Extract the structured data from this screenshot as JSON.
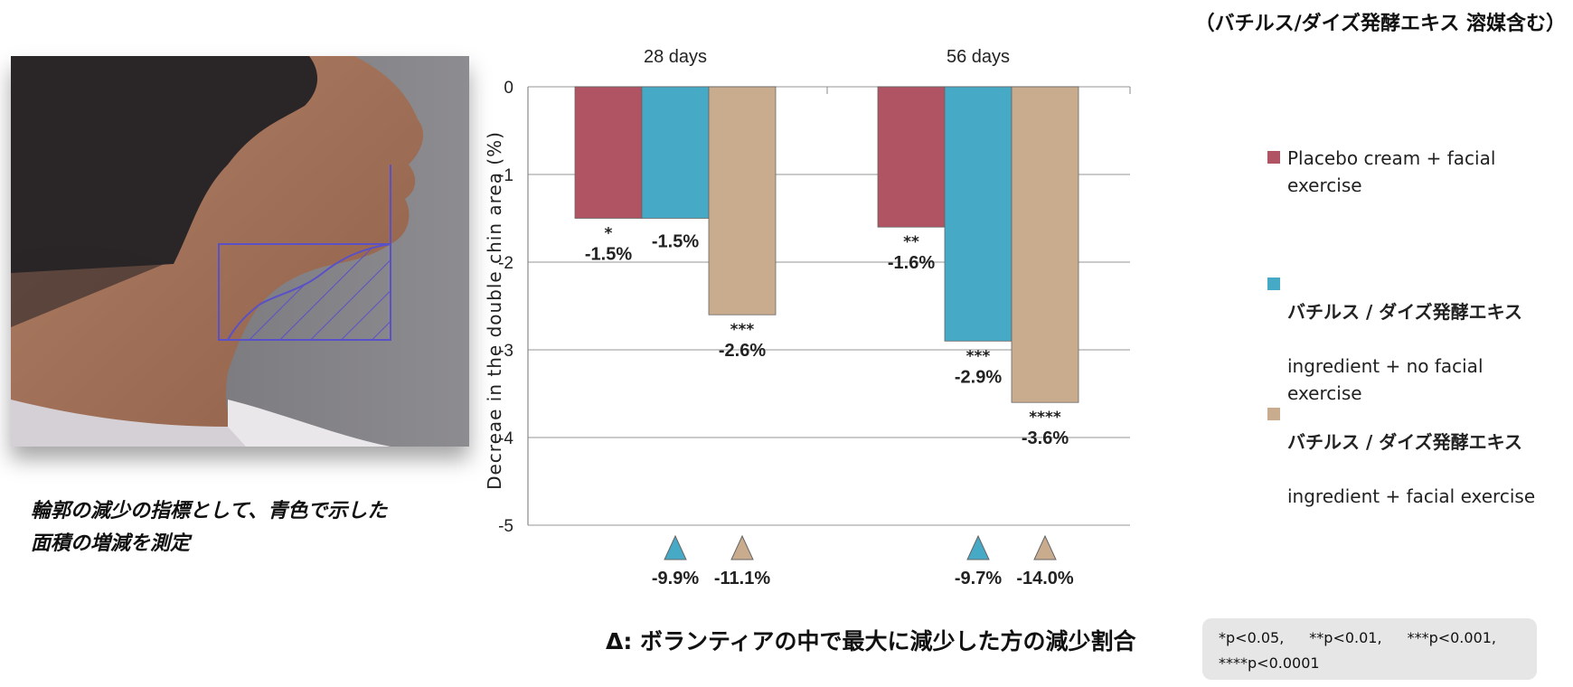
{
  "top_title": "（バチルス/ダイズ発酵エキス 溶媒含む）",
  "photo": {
    "description": "side profile of neck with hatched double-chin measurement area"
  },
  "caption_lines": [
    "輪郭の減少の指標として、青色で示した",
    "面積の増減を測定"
  ],
  "colors": {
    "placebo": "#b05463",
    "no_exercise": "#46a9c6",
    "with_exercise": "#c9ab8e",
    "grid": "#aaaaaa",
    "outline": "#6b5cc7"
  },
  "chart_data": {
    "type": "bar",
    "title": "",
    "ylabel": "Decreae in the double chin area (%)",
    "xlabel": "",
    "ylim": [
      -5,
      0
    ],
    "yticks": [
      0,
      -1,
      -2,
      -3,
      -4,
      -5
    ],
    "grid": true,
    "categories": [
      "28 days",
      "56 days"
    ],
    "series": [
      {
        "name": "Placebo cream + facial exercise",
        "color": "#b05463",
        "values": [
          -1.5,
          -1.6
        ],
        "labels": [
          "-1.5%",
          "-1.6%"
        ],
        "significance": [
          "*",
          "**"
        ]
      },
      {
        "name": "バチルス / ダイズ発酵エキス ingredient + no facial exercise",
        "color": "#46a9c6",
        "values": [
          -1.5,
          -2.9
        ],
        "labels": [
          "-1.5%",
          "-2.9%"
        ],
        "significance": [
          "",
          "***"
        ]
      },
      {
        "name": "バチルス / ダイズ発酵エキス ingredient + facial exercise",
        "color": "#c9ab8e",
        "values": [
          -2.6,
          -3.6
        ],
        "labels": [
          "-2.6%",
          "-3.6%"
        ],
        "significance": [
          "***",
          "****"
        ]
      }
    ],
    "max_reduction": [
      {
        "category": "28 days",
        "series": 1,
        "label": "-9.9%"
      },
      {
        "category": "28 days",
        "series": 2,
        "label": "-11.1%"
      },
      {
        "category": "56 days",
        "series": 1,
        "label": "-9.7%"
      },
      {
        "category": "56 days",
        "series": 2,
        "label": "-14.0%"
      }
    ]
  },
  "legend": {
    "items": [
      {
        "prefix": "",
        "text": "Placebo cream + facial\nexercise"
      },
      {
        "prefix": "バチルス / ダイズ発酵エキス",
        "text": "ingredient + no facial\nexercise"
      },
      {
        "prefix": "バチルス / ダイズ発酵エキス",
        "text": "ingredient + facial exercise"
      }
    ]
  },
  "footnote": "Δ: ボランティアの中で最大に減少した方の減少割合",
  "pvalues": [
    "*p<0.05,",
    "**p<0.01,",
    "***p<0.001,",
    "****p<0.0001"
  ]
}
